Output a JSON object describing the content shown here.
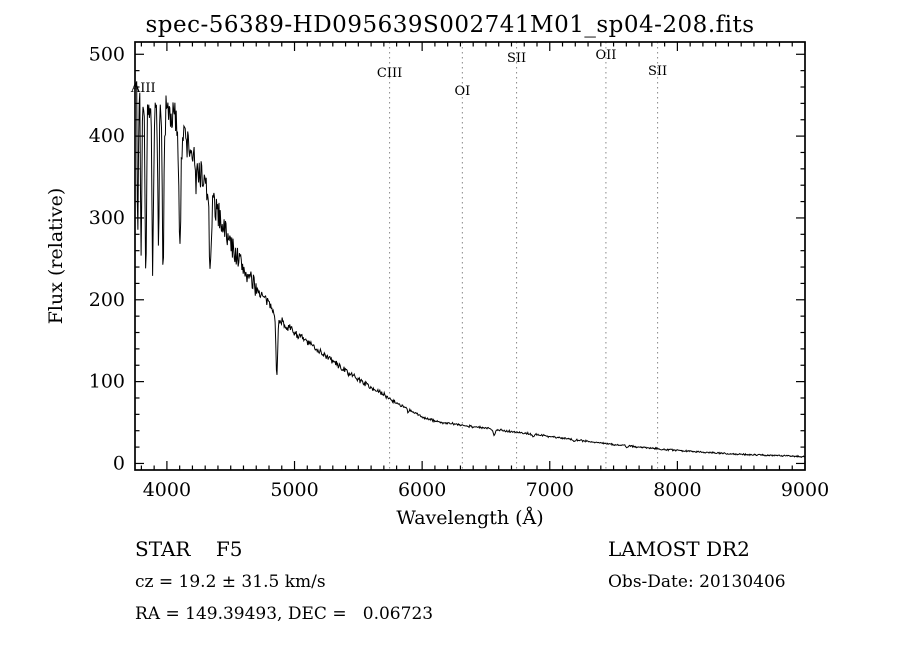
{
  "title": "spec-56389-HD095639S002741M01_sp04-208.fits",
  "footer": {
    "class_label": "STAR    F5",
    "survey": "LAMOST DR2",
    "cz": "cz = 19.2 ± 31.5 km/s",
    "obs_date": "Obs-Date: 20130406",
    "radec": "RA = 149.39493, DEC =   0.06723"
  },
  "chart_data": {
    "type": "line",
    "title": "spec-56389-HD095639S002741M01_sp04-208.fits",
    "xlabel": "Wavelength (Å)",
    "ylabel": "Flux (relative)",
    "xlim": [
      3750,
      9000
    ],
    "ylim": [
      -8,
      515
    ],
    "xticks": [
      4000,
      5000,
      6000,
      7000,
      8000,
      9000
    ],
    "yticks": [
      0,
      100,
      200,
      300,
      400,
      500
    ],
    "grid": false,
    "legend": "none",
    "line_color": "#000000",
    "marker_color": "#888888",
    "data_range": [
      3758,
      9000
    ],
    "sample_step": 5,
    "line_markers": [
      {
        "label": "AIII",
        "wavelength": 3815,
        "dy": 50,
        "has_line": false
      },
      {
        "label": "CIII",
        "wavelength": 5745,
        "dy": 35,
        "has_line": true
      },
      {
        "label": "OI",
        "wavelength": 6315,
        "dy": 53,
        "has_line": true
      },
      {
        "label": "SII",
        "wavelength": 6740,
        "dy": 20,
        "has_line": true
      },
      {
        "label": "OII",
        "wavelength": 7440,
        "dy": 17,
        "has_line": true
      },
      {
        "label": "SII",
        "wavelength": 7845,
        "dy": 33,
        "has_line": true
      }
    ],
    "continuum": [
      [
        3755,
        490
      ],
      [
        3765,
        505
      ],
      [
        3775,
        460
      ],
      [
        3790,
        470
      ],
      [
        3810,
        455
      ],
      [
        3830,
        450
      ],
      [
        3850,
        445
      ],
      [
        3870,
        440
      ],
      [
        3890,
        438
      ],
      [
        3910,
        432
      ],
      [
        3930,
        430
      ],
      [
        3950,
        428
      ],
      [
        3970,
        426
      ],
      [
        3990,
        428
      ],
      [
        4010,
        430
      ],
      [
        4040,
        426
      ],
      [
        4070,
        418
      ],
      [
        4100,
        410
      ],
      [
        4130,
        400
      ],
      [
        4160,
        392
      ],
      [
        4200,
        378
      ],
      [
        4240,
        362
      ],
      [
        4280,
        348
      ],
      [
        4320,
        332
      ],
      [
        4360,
        318
      ],
      [
        4400,
        306
      ],
      [
        4440,
        292
      ],
      [
        4480,
        275
      ],
      [
        4520,
        262
      ],
      [
        4560,
        250
      ],
      [
        4600,
        238
      ],
      [
        4640,
        228
      ],
      [
        4680,
        218
      ],
      [
        4720,
        210
      ],
      [
        4760,
        202
      ],
      [
        4800,
        195
      ],
      [
        4840,
        188
      ],
      [
        4880,
        178
      ],
      [
        4920,
        170
      ],
      [
        4960,
        165
      ],
      [
        5000,
        160
      ],
      [
        5050,
        154
      ],
      [
        5100,
        148
      ],
      [
        5150,
        143
      ],
      [
        5200,
        137
      ],
      [
        5250,
        131
      ],
      [
        5300,
        125
      ],
      [
        5350,
        119
      ],
      [
        5400,
        113
      ],
      [
        5450,
        108
      ],
      [
        5500,
        103
      ],
      [
        5550,
        98
      ],
      [
        5600,
        93
      ],
      [
        5650,
        88
      ],
      [
        5700,
        84
      ],
      [
        5750,
        79
      ],
      [
        5800,
        74
      ],
      [
        5850,
        70
      ],
      [
        5900,
        65
      ],
      [
        5950,
        61
      ],
      [
        6000,
        57
      ],
      [
        6050,
        54
      ],
      [
        6100,
        52
      ],
      [
        6150,
        50
      ],
      [
        6200,
        49
      ],
      [
        6250,
        48
      ],
      [
        6300,
        47
      ],
      [
        6350,
        46
      ],
      [
        6400,
        45
      ],
      [
        6450,
        44
      ],
      [
        6500,
        43
      ],
      [
        6550,
        42
      ],
      [
        6600,
        41
      ],
      [
        6650,
        40
      ],
      [
        6700,
        39
      ],
      [
        6750,
        38
      ],
      [
        6800,
        37
      ],
      [
        6850,
        36
      ],
      [
        6900,
        35
      ],
      [
        6950,
        34
      ],
      [
        7000,
        33
      ],
      [
        7100,
        31
      ],
      [
        7200,
        29
      ],
      [
        7300,
        27
      ],
      [
        7400,
        25
      ],
      [
        7500,
        23
      ],
      [
        7600,
        22
      ],
      [
        7700,
        20
      ],
      [
        7800,
        19
      ],
      [
        7900,
        17
      ],
      [
        8000,
        16
      ],
      [
        8100,
        15
      ],
      [
        8200,
        14
      ],
      [
        8300,
        13
      ],
      [
        8400,
        12
      ],
      [
        8500,
        11
      ],
      [
        8600,
        10.5
      ],
      [
        8700,
        10
      ],
      [
        8800,
        9.5
      ],
      [
        8900,
        9
      ],
      [
        9000,
        8
      ]
    ],
    "absorption_lines": [
      {
        "center": 3771,
        "depth": 0.42,
        "sigma": 5
      },
      {
        "center": 3798,
        "depth": 0.44,
        "sigma": 5
      },
      {
        "center": 3835,
        "depth": 0.5,
        "sigma": 6
      },
      {
        "center": 3889,
        "depth": 0.46,
        "sigma": 6
      },
      {
        "center": 3934,
        "depth": 0.42,
        "sigma": 5
      },
      {
        "center": 3970,
        "depth": 0.46,
        "sigma": 6
      },
      {
        "center": 4102,
        "depth": 0.32,
        "sigma": 8
      },
      {
        "center": 4227,
        "depth": 0.12,
        "sigma": 4
      },
      {
        "center": 4340,
        "depth": 0.28,
        "sigma": 8
      },
      {
        "center": 4861,
        "depth": 0.42,
        "sigma": 7
      },
      {
        "center": 5890,
        "depth": 0.07,
        "sigma": 5
      },
      {
        "center": 6563,
        "depth": 0.16,
        "sigma": 8
      },
      {
        "center": 6870,
        "depth": 0.08,
        "sigma": 7
      },
      {
        "center": 7190,
        "depth": 0.05,
        "sigma": 8
      },
      {
        "center": 7605,
        "depth": 0.1,
        "sigma": 9
      },
      {
        "center": 8230,
        "depth": 0.05,
        "sigma": 8
      }
    ],
    "noise": {
      "seed": 7,
      "abs_amp": 0.9,
      "segments": [
        {
          "until": 4700,
          "amp": 0.055
        },
        {
          "until": 5800,
          "amp": 0.028
        },
        {
          "until": 9100,
          "amp": 0.02
        }
      ]
    }
  }
}
